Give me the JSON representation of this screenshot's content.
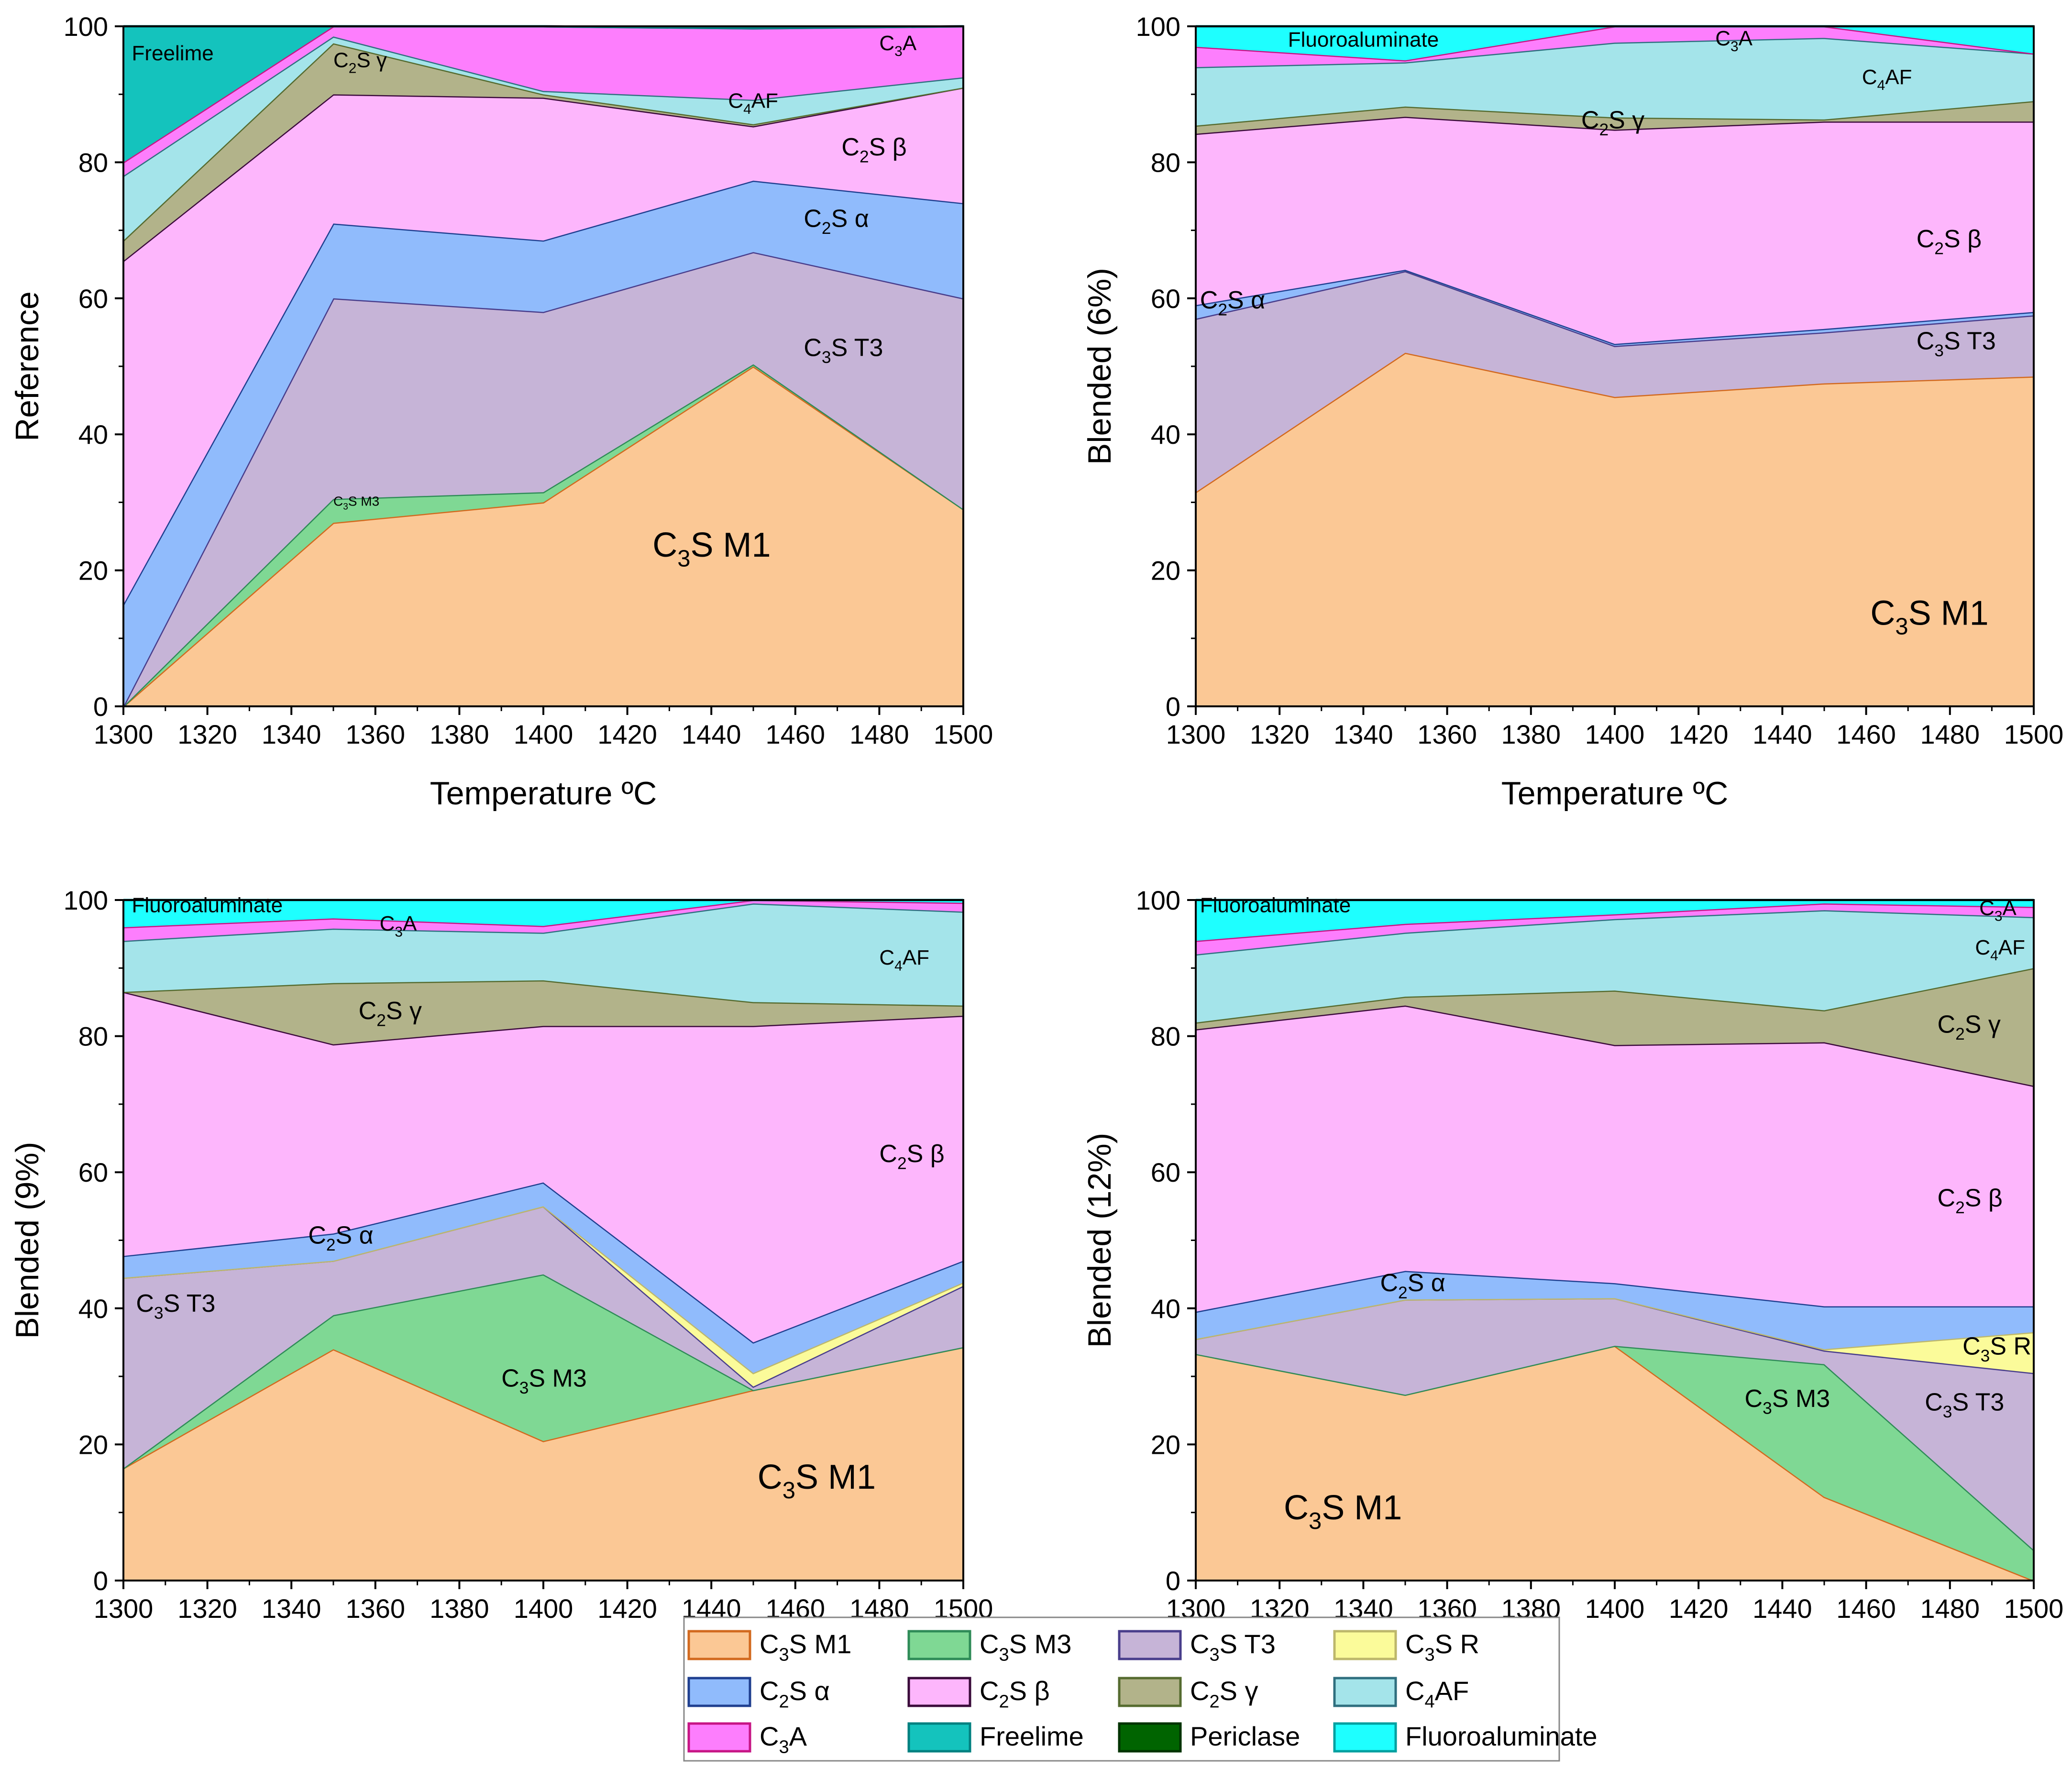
{
  "colors": {
    "C3S M1": "#FBC895",
    "C3S M3": "#7FD894",
    "C3S T3": "#C6B4D7",
    "C3S R": "#FBFB9A",
    "C2S α": "#90BBFC",
    "C2S β": "#FDB6FC",
    "C2S γ": "#B2B38A",
    "C4AF": "#A4E4EA",
    "C3A": "#FD7EFD",
    "Freelime": "#14C3BD",
    "Periclase": "#006400",
    "Fluoroaluminate": "#1EFFFF"
  },
  "edges": {
    "C3S M1": "#D2691E",
    "C3S M3": "#2E8B57",
    "C3S T3": "#483D8B",
    "C3S R": "#BDB76B",
    "C2S α": "#1F3F8F",
    "C2S β": "#3A0A3A",
    "C2S γ": "#556B2F",
    "C4AF": "#2F6F7F",
    "C3A": "#C71585",
    "Freelime": "#008080",
    "Periclase": "#003300",
    "Fluoroaluminate": "#00A0A0"
  },
  "legend": [
    {
      "key": "C3S M1",
      "sub": "3",
      "pre": "C",
      "post": "S M1"
    },
    {
      "key": "C3S M3",
      "sub": "3",
      "pre": "C",
      "post": "S M3"
    },
    {
      "key": "C3S T3",
      "sub": "3",
      "pre": "C",
      "post": "S T3"
    },
    {
      "key": "C3S R",
      "sub": "3",
      "pre": "C",
      "post": "S R"
    },
    {
      "key": "C2S α",
      "sub": "2",
      "pre": "C",
      "post": "S α"
    },
    {
      "key": "C2S β",
      "sub": "2",
      "pre": "C",
      "post": "S β"
    },
    {
      "key": "C2S γ",
      "sub": "2",
      "pre": "C",
      "post": "S γ"
    },
    {
      "key": "C4AF",
      "sub": "4",
      "pre": "C",
      "post": "AF"
    },
    {
      "key": "C3A",
      "sub": "3",
      "pre": "C",
      "post": "A"
    },
    {
      "key": "Freelime",
      "sub": "",
      "pre": "Freelime",
      "post": ""
    },
    {
      "key": "Periclase",
      "sub": "",
      "pre": "Periclase",
      "post": ""
    },
    {
      "key": "Fluoroaluminate",
      "sub": "",
      "pre": "Fluoroaluminate",
      "post": ""
    }
  ],
  "chart_data": [
    {
      "type": "area",
      "stacked": true,
      "title": "",
      "xlabel": "Temperature ºC",
      "ylabel": "Reference",
      "x": [
        1300,
        1350,
        1400,
        1450,
        1500
      ],
      "xlim": [
        1300,
        1500
      ],
      "ylim": [
        0,
        100
      ],
      "xticks": [
        1300,
        1320,
        1340,
        1360,
        1380,
        1400,
        1420,
        1440,
        1460,
        1480,
        1500
      ],
      "yticks": [
        0,
        20,
        40,
        60,
        80,
        100
      ],
      "series": [
        {
          "name": "C3S M1",
          "values": [
            0,
            27,
            30,
            50,
            29
          ]
        },
        {
          "name": "C3S M3",
          "values": [
            0,
            3.5,
            1.5,
            0.3,
            0
          ]
        },
        {
          "name": "C3S T3",
          "values": [
            0,
            29.5,
            26.5,
            16.5,
            31
          ]
        },
        {
          "name": "C2S α",
          "values": [
            15,
            11,
            10.5,
            10.5,
            14
          ]
        },
        {
          "name": "C2S β",
          "values": [
            50.5,
            19,
            21,
            8,
            17
          ]
        },
        {
          "name": "C2S γ",
          "values": [
            3,
            7.5,
            0.5,
            0.3,
            0
          ]
        },
        {
          "name": "C4AF",
          "values": [
            9.5,
            1,
            0.5,
            3.6,
            1.5
          ]
        },
        {
          "name": "C3A",
          "values": [
            2,
            1.5,
            10,
            10.5,
            7.5
          ]
        },
        {
          "name": "Freelime",
          "values": [
            21,
            0,
            0,
            0,
            0
          ]
        }
      ],
      "annotations": [
        {
          "pre": "Freelime",
          "sub": "",
          "post": "",
          "x": 1302,
          "y": 95,
          "anchor": "start",
          "size": "small"
        },
        {
          "pre": "C",
          "sub": "3",
          "post": "A",
          "x": 1480,
          "y": 96.5,
          "anchor": "start",
          "size": "small"
        },
        {
          "pre": "C",
          "sub": "2",
          "post": "S γ",
          "x": 1350,
          "y": 94,
          "anchor": "start",
          "size": "small"
        },
        {
          "pre": "C",
          "sub": "4",
          "post": "AF",
          "x": 1444,
          "y": 88,
          "anchor": "start",
          "size": "small"
        },
        {
          "pre": "C",
          "sub": "2",
          "post": "S β",
          "x": 1471,
          "y": 81,
          "anchor": "start",
          "size": "normal"
        },
        {
          "pre": "C",
          "sub": "2",
          "post": "S α",
          "x": 1462,
          "y": 70.5,
          "anchor": "start",
          "size": "normal"
        },
        {
          "pre": "C",
          "sub": "3",
          "post": "S T3",
          "x": 1462,
          "y": 51.5,
          "anchor": "start",
          "size": "normal"
        },
        {
          "pre": "C",
          "sub": "3",
          "post": "S M3",
          "x": 1350,
          "y": 29.5,
          "anchor": "start",
          "size": "tiny"
        },
        {
          "pre": "C",
          "sub": "3",
          "post": "S M1",
          "x": 1426,
          "y": 22,
          "anchor": "start",
          "size": "large"
        }
      ]
    },
    {
      "type": "area",
      "stacked": true,
      "title": "",
      "xlabel": "Temperature ºC",
      "ylabel": "Blended (6%)",
      "x": [
        1300,
        1350,
        1400,
        1450,
        1500
      ],
      "xlim": [
        1300,
        1500
      ],
      "ylim": [
        0,
        100
      ],
      "xticks": [
        1300,
        1320,
        1340,
        1360,
        1380,
        1400,
        1420,
        1440,
        1460,
        1480,
        1500
      ],
      "yticks": [
        0,
        20,
        40,
        60,
        80,
        100
      ],
      "series": [
        {
          "name": "C3S M1",
          "values": [
            31.5,
            52,
            45.5,
            47.5,
            48.5
          ]
        },
        {
          "name": "C3S T3",
          "values": [
            25.5,
            12,
            7.5,
            7.5,
            9
          ]
        },
        {
          "name": "C2S α",
          "values": [
            2,
            0.2,
            0.3,
            0.5,
            0.5
          ]
        },
        {
          "name": "C2S β",
          "values": [
            25.2,
            22.5,
            31.5,
            30.5,
            28
          ]
        },
        {
          "name": "C2S γ",
          "values": [
            1.2,
            1.5,
            1.8,
            0.3,
            3
          ]
        },
        {
          "name": "C4AF",
          "values": [
            8.6,
            6.5,
            11,
            12,
            7
          ]
        },
        {
          "name": "C3A",
          "values": [
            3,
            0.3,
            2.4,
            2.2,
            0
          ]
        },
        {
          "name": "Fluoroaluminate",
          "values": [
            3,
            5,
            0,
            0,
            4
          ]
        }
      ],
      "annotations": [
        {
          "pre": "Fluoroaluminate",
          "sub": "",
          "post": "",
          "x": 1322,
          "y": 97,
          "anchor": "start",
          "size": "small"
        },
        {
          "pre": "C",
          "sub": "3",
          "post": "A",
          "x": 1424,
          "y": 97.2,
          "anchor": "start",
          "size": "small"
        },
        {
          "pre": "C",
          "sub": "4",
          "post": "AF",
          "x": 1459,
          "y": 91.5,
          "anchor": "start",
          "size": "small"
        },
        {
          "pre": "C",
          "sub": "2",
          "post": "S γ",
          "x": 1392,
          "y": 85,
          "anchor": "start",
          "size": "normal"
        },
        {
          "pre": "C",
          "sub": "2",
          "post": "S β",
          "x": 1472,
          "y": 67.5,
          "anchor": "start",
          "size": "normal"
        },
        {
          "pre": "C",
          "sub": "2",
          "post": "S α",
          "x": 1301,
          "y": 58.5,
          "anchor": "start",
          "size": "normal"
        },
        {
          "pre": "C",
          "sub": "3",
          "post": "S T3",
          "x": 1472,
          "y": 52.5,
          "anchor": "start",
          "size": "normal"
        },
        {
          "pre": "C",
          "sub": "3",
          "post": "S M1",
          "x": 1461,
          "y": 12,
          "anchor": "start",
          "size": "large"
        }
      ]
    },
    {
      "type": "area",
      "stacked": true,
      "title": "",
      "xlabel": "",
      "ylabel": "Blended (9%)",
      "x": [
        1300,
        1350,
        1400,
        1450,
        1500
      ],
      "xlim": [
        1300,
        1500
      ],
      "ylim": [
        0,
        100
      ],
      "xticks": [
        1300,
        1320,
        1340,
        1360,
        1380,
        1400,
        1420,
        1440,
        1460,
        1480,
        1500
      ],
      "yticks": [
        0,
        20,
        40,
        60,
        80,
        100
      ],
      "series": [
        {
          "name": "C3S M1",
          "values": [
            16.5,
            34,
            20.5,
            28,
            34.3
          ]
        },
        {
          "name": "C3S M3",
          "values": [
            0,
            5,
            24.5,
            0,
            0
          ]
        },
        {
          "name": "C3S T3",
          "values": [
            28,
            8,
            10,
            0.5,
            9
          ]
        },
        {
          "name": "C3S R",
          "values": [
            0,
            0,
            0,
            2,
            0.5
          ]
        },
        {
          "name": "C2S α",
          "values": [
            3.2,
            4,
            3.5,
            4.5,
            3.2
          ]
        },
        {
          "name": "C2S β",
          "values": [
            38.8,
            27.8,
            23,
            46.5,
            36
          ]
        },
        {
          "name": "C2S γ",
          "values": [
            0,
            9,
            6.7,
            3.5,
            1.5
          ]
        },
        {
          "name": "C4AF",
          "values": [
            7.5,
            8,
            7,
            14.5,
            13.8
          ]
        },
        {
          "name": "C3A",
          "values": [
            2,
            1.5,
            1,
            0.5,
            1.3
          ]
        },
        {
          "name": "Fluoroaluminate",
          "values": [
            4,
            2.7,
            3.8,
            0,
            0.4
          ]
        }
      ],
      "annotations": [
        {
          "pre": "Fluoroaluminate",
          "sub": "",
          "post": "",
          "x": 1302,
          "y": 98.2,
          "anchor": "start",
          "size": "small"
        },
        {
          "pre": "C",
          "sub": "3",
          "post": "A",
          "x": 1361,
          "y": 95.5,
          "anchor": "start",
          "size": "small"
        },
        {
          "pre": "C",
          "sub": "4",
          "post": "AF",
          "x": 1480,
          "y": 90.5,
          "anchor": "start",
          "size": "small"
        },
        {
          "pre": "C",
          "sub": "2",
          "post": "S γ",
          "x": 1356,
          "y": 82.5,
          "anchor": "start",
          "size": "normal"
        },
        {
          "pre": "C",
          "sub": "2",
          "post": "S β",
          "x": 1480,
          "y": 61.5,
          "anchor": "start",
          "size": "normal"
        },
        {
          "pre": "C",
          "sub": "2",
          "post": "S α",
          "x": 1344,
          "y": 49.5,
          "anchor": "start",
          "size": "normal"
        },
        {
          "pre": "C",
          "sub": "3",
          "post": "S T3",
          "x": 1303,
          "y": 39.5,
          "anchor": "start",
          "size": "normal"
        },
        {
          "pre": "C",
          "sub": "3",
          "post": "S M3",
          "x": 1390,
          "y": 28.5,
          "anchor": "start",
          "size": "normal"
        },
        {
          "pre": "C",
          "sub": "3",
          "post": "S M1",
          "x": 1451,
          "y": 13.5,
          "anchor": "start",
          "size": "large"
        }
      ]
    },
    {
      "type": "area",
      "stacked": true,
      "title": "",
      "xlabel": "",
      "ylabel": "Blended (12%)",
      "x": [
        1300,
        1350,
        1400,
        1450,
        1500
      ],
      "xlim": [
        1300,
        1500
      ],
      "ylim": [
        0,
        100
      ],
      "xticks": [
        1300,
        1320,
        1340,
        1360,
        1380,
        1400,
        1420,
        1440,
        1460,
        1480,
        1500
      ],
      "yticks": [
        0,
        20,
        40,
        60,
        80,
        100
      ],
      "series": [
        {
          "name": "C3S M1",
          "values": [
            33.3,
            27.3,
            34.5,
            12.3,
            0
          ]
        },
        {
          "name": "C3S M3",
          "values": [
            0,
            0,
            0,
            19.5,
            4.5
          ]
        },
        {
          "name": "C3S T3",
          "values": [
            2.2,
            14,
            7,
            2,
            26
          ]
        },
        {
          "name": "C3S R",
          "values": [
            0,
            0,
            0,
            0.2,
            6
          ]
        },
        {
          "name": "C2S α",
          "values": [
            4,
            4.2,
            2.2,
            6.3,
            3.8
          ]
        },
        {
          "name": "C2S β",
          "values": [
            41.5,
            39,
            35,
            38.8,
            32.4
          ]
        },
        {
          "name": "C2S γ",
          "values": [
            1,
            1.3,
            8,
            4.7,
            17.3
          ]
        },
        {
          "name": "C4AF",
          "values": [
            10,
            9.4,
            10.5,
            14.7,
            7.5
          ]
        },
        {
          "name": "C3A",
          "values": [
            2,
            1.3,
            0.7,
            1,
            1.5
          ]
        },
        {
          "name": "Fluoroaluminate",
          "values": [
            6,
            3.5,
            2.1,
            0.5,
            1
          ]
        }
      ],
      "annotations": [
        {
          "pre": "Fluoroaluminate",
          "sub": "",
          "post": "",
          "x": 1301,
          "y": 98.2,
          "anchor": "start",
          "size": "small"
        },
        {
          "pre": "C",
          "sub": "3",
          "post": "A",
          "x": 1487,
          "y": 97.8,
          "anchor": "start",
          "size": "small"
        },
        {
          "pre": "C",
          "sub": "4",
          "post": "AF",
          "x": 1486,
          "y": 92,
          "anchor": "start",
          "size": "small"
        },
        {
          "pre": "C",
          "sub": "2",
          "post": "S γ",
          "x": 1477,
          "y": 80.5,
          "anchor": "start",
          "size": "normal"
        },
        {
          "pre": "C",
          "sub": "2",
          "post": "S β",
          "x": 1477,
          "y": 55,
          "anchor": "start",
          "size": "normal"
        },
        {
          "pre": "C",
          "sub": "2",
          "post": "S α",
          "x": 1344,
          "y": 42.5,
          "anchor": "start",
          "size": "normal"
        },
        {
          "pre": "C",
          "sub": "3",
          "post": "S R",
          "x": 1483,
          "y": 33.2,
          "anchor": "start",
          "size": "normal"
        },
        {
          "pre": "C",
          "sub": "3",
          "post": "S M3",
          "x": 1431,
          "y": 25.5,
          "anchor": "start",
          "size": "normal"
        },
        {
          "pre": "C",
          "sub": "3",
          "post": "S T3",
          "x": 1474,
          "y": 25,
          "anchor": "start",
          "size": "normal"
        },
        {
          "pre": "C",
          "sub": "3",
          "post": "S M1",
          "x": 1321,
          "y": 9,
          "anchor": "start",
          "size": "large"
        }
      ]
    }
  ]
}
